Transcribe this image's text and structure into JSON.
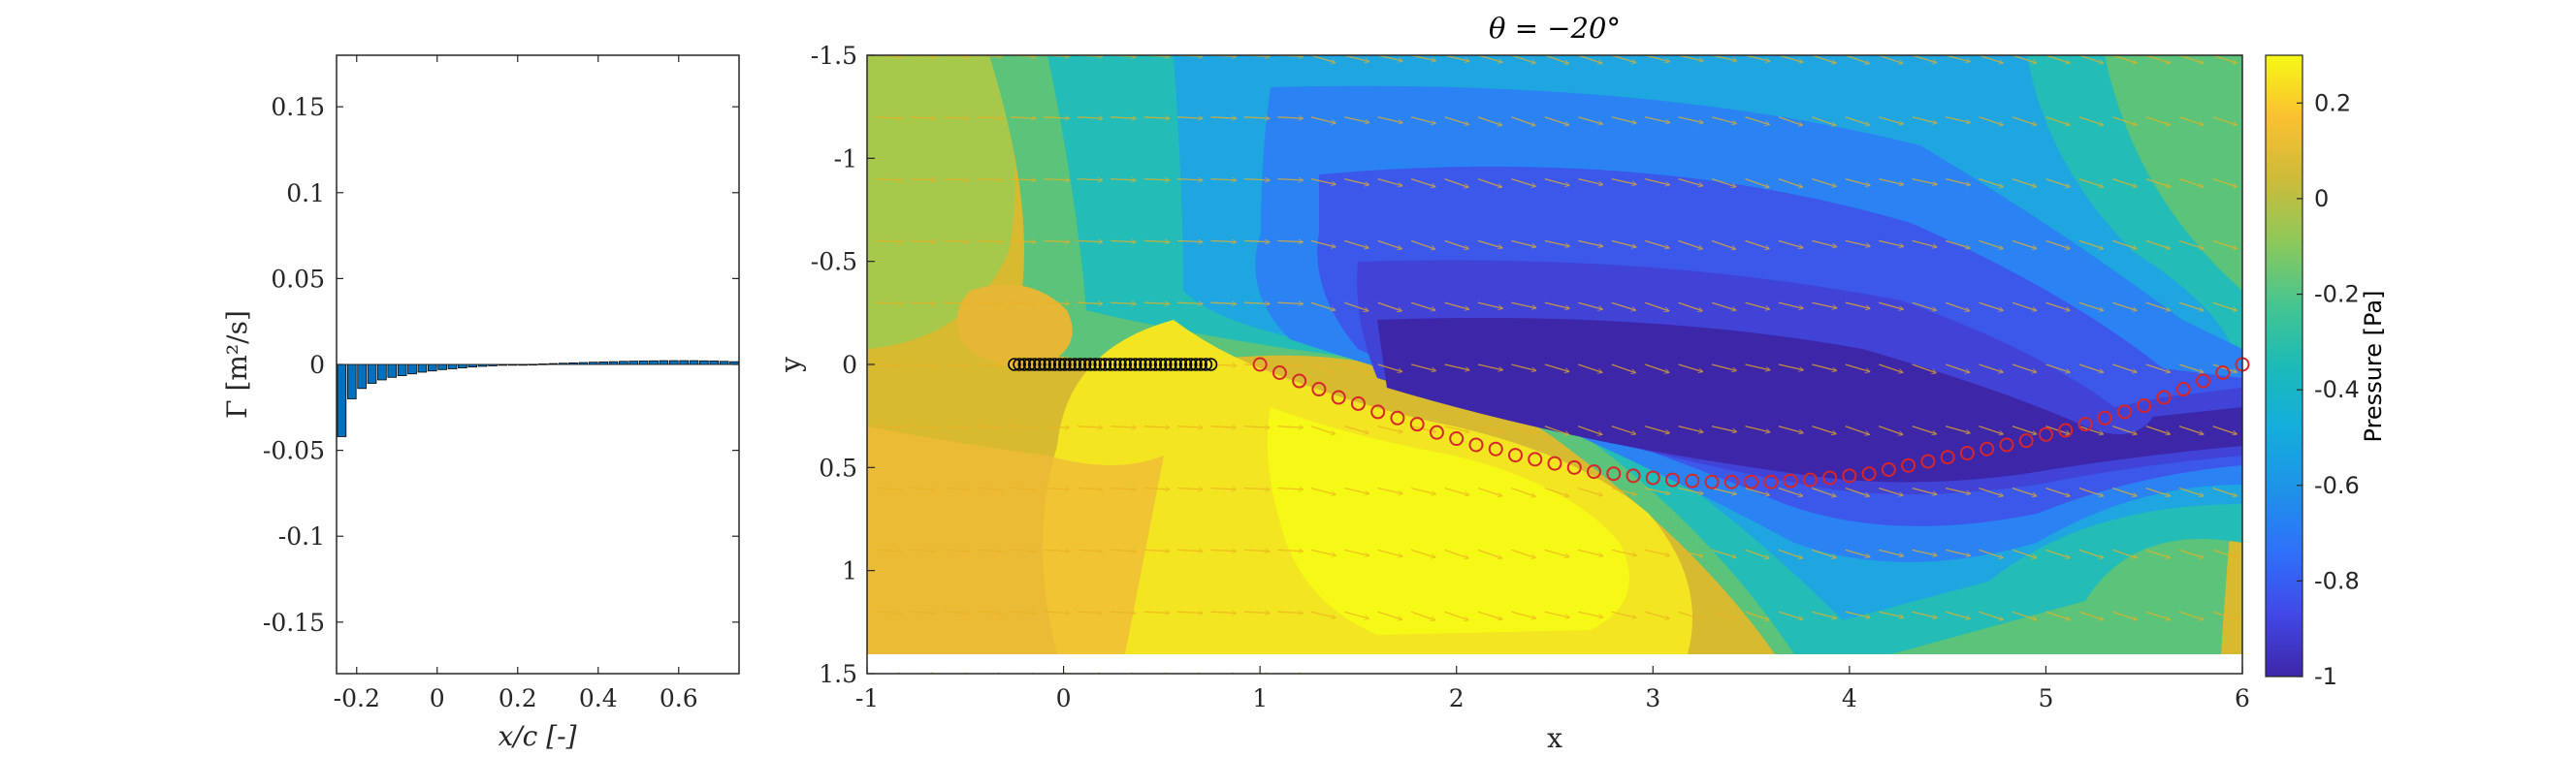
{
  "colors": {
    "bar_fill": "#0072BD",
    "quiver": "#EDB120",
    "path_marker": "#D62728",
    "plate_marker": "#000000",
    "axes": "#262626"
  },
  "chart_data": [
    {
      "type": "bar",
      "xlabel": "x/c [-]",
      "ylabel": "Γ [m²/s]",
      "xlim": [
        -0.25,
        0.75
      ],
      "ylim": [
        -0.18,
        0.18
      ],
      "xticks": [
        "-0.2",
        "0",
        "0.2",
        "0.4",
        "0.6"
      ],
      "xtick_values": [
        -0.2,
        0,
        0.2,
        0.4,
        0.6
      ],
      "yticks": [
        "0.15",
        "0.1",
        "0.05",
        "0",
        "-0.05",
        "-0.1",
        "-0.15"
      ],
      "ytick_values": [
        0.15,
        0.1,
        0.05,
        0,
        -0.05,
        -0.1,
        -0.15
      ],
      "x": [
        -0.237,
        -0.212,
        -0.187,
        -0.162,
        -0.137,
        -0.112,
        -0.087,
        -0.062,
        -0.037,
        -0.012,
        0.013,
        0.038,
        0.063,
        0.088,
        0.113,
        0.138,
        0.163,
        0.188,
        0.213,
        0.238,
        0.263,
        0.288,
        0.313,
        0.338,
        0.363,
        0.388,
        0.413,
        0.438,
        0.463,
        0.488,
        0.513,
        0.538,
        0.563,
        0.588,
        0.613,
        0.638,
        0.663,
        0.688,
        0.713,
        0.738
      ],
      "values": [
        -0.042,
        -0.02,
        -0.014,
        -0.011,
        -0.009,
        -0.0075,
        -0.0065,
        -0.0055,
        -0.0045,
        -0.0038,
        -0.003,
        -0.0025,
        -0.002,
        -0.0015,
        -0.0011,
        -0.0008,
        -0.0005,
        -0.0003,
        -0.0001,
        0.0001,
        0.0003,
        0.0005,
        0.0007,
        0.0009,
        0.0011,
        0.0013,
        0.0015,
        0.0016,
        0.0018,
        0.0019,
        0.002,
        0.0021,
        0.0022,
        0.0022,
        0.0022,
        0.0022,
        0.0021,
        0.002,
        0.0018,
        0.0016
      ]
    },
    {
      "type": "heatmap",
      "title": "θ = −20°",
      "xlabel": "x",
      "ylabel": "y",
      "xlim": [
        -1,
        6
      ],
      "ylim": [
        -1.5,
        1.5
      ],
      "y_reversed": true,
      "xticks": [
        "-1",
        "0",
        "1",
        "2",
        "3",
        "4",
        "5",
        "6"
      ],
      "xtick_values": [
        -1,
        0,
        1,
        2,
        3,
        4,
        5,
        6
      ],
      "yticks": [
        "-1.5",
        "-1",
        "-0.5",
        "0",
        "0.5",
        "1",
        "1.5"
      ],
      "ytick_values": [
        -1.5,
        -1,
        -0.5,
        0,
        0.5,
        1,
        1.5
      ],
      "colorbar": {
        "label": "Pressure [Pa]",
        "range": [
          -1,
          0.3
        ],
        "ticks": [
          "0.2",
          "0",
          "-0.2",
          "-0.4",
          "-0.6",
          "-0.8",
          "-1"
        ],
        "tick_values": [
          0.2,
          0,
          -0.2,
          -0.4,
          -0.6,
          -0.8,
          -1
        ]
      },
      "plate": {
        "x_start": -0.25,
        "x_end": 0.75,
        "y": 0,
        "markers": 40
      },
      "wake_path": {
        "x": [
          1.0,
          1.1,
          1.2,
          1.3,
          1.4,
          1.5,
          1.6,
          1.7,
          1.8,
          1.9,
          2.0,
          2.1,
          2.2,
          2.3,
          2.4,
          2.5,
          2.6,
          2.7,
          2.8,
          2.9,
          3.0,
          3.1,
          3.2,
          3.3,
          3.4,
          3.5,
          3.6,
          3.7,
          3.8,
          3.9,
          4.0,
          4.1,
          4.2,
          4.3,
          4.4,
          4.5,
          4.6,
          4.7,
          4.8,
          4.9,
          5.0,
          5.1,
          5.2,
          5.3,
          5.4,
          5.5,
          5.6,
          5.7,
          5.8,
          5.9,
          6.0
        ],
        "y": [
          0.0,
          0.04,
          0.08,
          0.12,
          0.16,
          0.19,
          0.23,
          0.26,
          0.29,
          0.33,
          0.36,
          0.39,
          0.41,
          0.44,
          0.46,
          0.48,
          0.5,
          0.52,
          0.53,
          0.54,
          0.55,
          0.56,
          0.565,
          0.57,
          0.57,
          0.57,
          0.57,
          0.565,
          0.56,
          0.55,
          0.54,
          0.53,
          0.51,
          0.49,
          0.47,
          0.45,
          0.43,
          0.41,
          0.39,
          0.37,
          0.34,
          0.32,
          0.29,
          0.26,
          0.23,
          0.2,
          0.16,
          0.12,
          0.08,
          0.04,
          0.0
        ]
      }
    }
  ]
}
